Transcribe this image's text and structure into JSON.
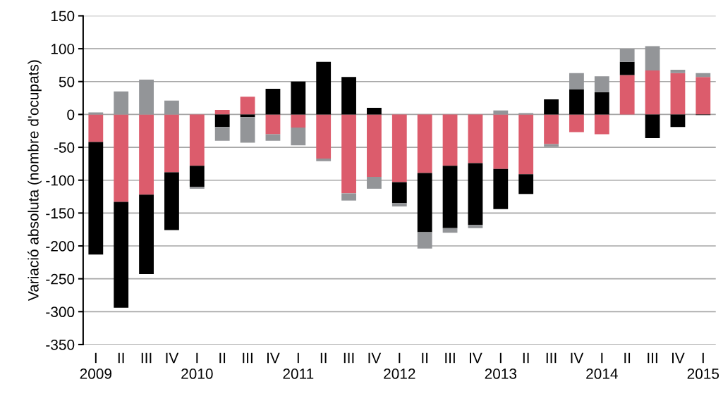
{
  "chart_data": {
    "type": "bar",
    "stacked": true,
    "ylabel": "Variació absoluta (nombre d'ocupats)",
    "categories": [
      "I\n2009",
      "II",
      "III",
      "IV",
      "I\n2010",
      "II",
      "III",
      "IV",
      "I\n2011",
      "II",
      "III",
      "IV",
      "I\n2012",
      "II",
      "III",
      "IV",
      "I\n2013",
      "II",
      "III",
      "IV",
      "I\n2014",
      "II",
      "III",
      "IV",
      "I\n2015"
    ],
    "series": [
      {
        "color": "#dc5c6c",
        "values": [
          -42,
          -133,
          -122,
          -88,
          -78,
          7,
          27,
          -30,
          -20,
          -67,
          -120,
          -95,
          -103,
          -89,
          -78,
          -74,
          -83,
          -91,
          -45,
          -27,
          -30,
          60,
          67,
          63,
          57
        ]
      },
      {
        "color": "#000000",
        "values": [
          -171,
          -161,
          -121,
          -88,
          -32,
          -19,
          -4,
          39,
          50,
          80,
          57,
          10,
          -32,
          -90,
          -95,
          -94,
          -61,
          -30,
          23,
          38,
          34,
          20,
          -36,
          -19,
          -1
        ]
      },
      {
        "color": "#939598",
        "values": [
          3,
          35,
          53,
          21,
          -3,
          -21,
          -39,
          -10,
          -27,
          -4,
          -11,
          -18,
          -5,
          -25,
          -7,
          -5,
          6,
          2,
          -4,
          25,
          24,
          20,
          37,
          5,
          6
        ]
      }
    ],
    "ylim": [
      -350,
      150
    ],
    "yticks": [
      -350,
      -300,
      -250,
      -200,
      -150,
      -100,
      -50,
      0,
      50,
      100,
      150
    ],
    "grid": "y",
    "legend": false
  }
}
